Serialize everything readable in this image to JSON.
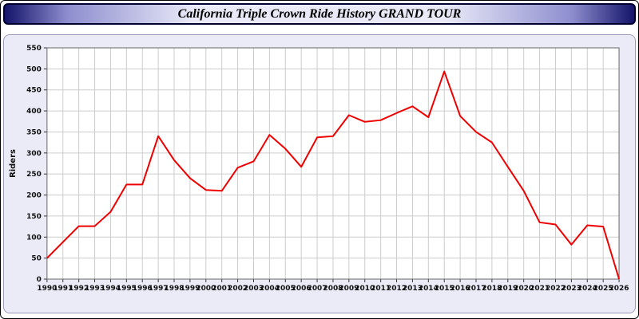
{
  "title": "California Triple Crown Ride History GRAND TOUR",
  "chart_data": {
    "type": "line",
    "title": "California Triple Crown Ride History GRAND TOUR",
    "xlabel": "",
    "ylabel": "Riders",
    "ylim": [
      0,
      550
    ],
    "y_ticks": [
      0,
      50,
      100,
      150,
      200,
      250,
      300,
      350,
      400,
      450,
      500,
      550
    ],
    "grid": true,
    "legend": "none",
    "line_color": "#ee0000",
    "grid_color": "#cccccc",
    "plot_bg": "#ffffff",
    "panel_bg": "#ebebf8",
    "axis_color": "#666666",
    "text_color": "#111111",
    "categories": [
      "1990",
      "1991",
      "1992",
      "1993",
      "1994",
      "1995",
      "1996",
      "1997",
      "1998",
      "1999",
      "2000",
      "2001",
      "2002",
      "2003",
      "2004",
      "2005",
      "2006",
      "2007",
      "2008",
      "2009",
      "2010",
      "2011",
      "2012",
      "2013",
      "2014",
      "2015",
      "2016",
      "2017",
      "2018",
      "2019",
      "2020",
      "2021",
      "2022",
      "2023",
      "2024",
      "2025",
      "2026"
    ],
    "values": [
      50,
      88,
      126,
      126,
      160,
      225,
      225,
      340,
      283,
      240,
      212,
      210,
      265,
      280,
      343,
      310,
      267,
      337,
      340,
      390,
      374,
      378,
      395,
      411,
      385,
      494,
      388,
      350,
      325,
      267,
      210,
      135,
      130,
      82,
      128,
      125,
      0
    ]
  }
}
